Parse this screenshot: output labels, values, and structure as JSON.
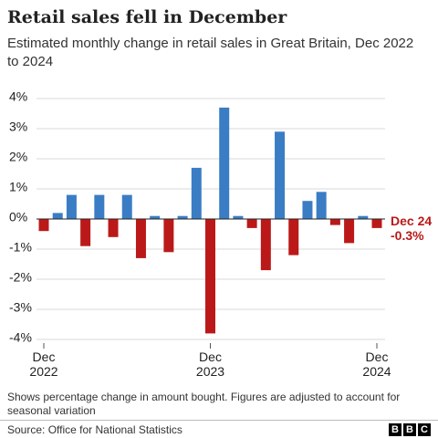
{
  "chart_data": {
    "type": "bar",
    "title": "Retail sales fell in December",
    "subtitle": "Estimated monthly change in retail sales in Great Britain, Dec 2022 to 2024",
    "categories": [
      "Dec\n2022",
      null,
      null,
      null,
      null,
      null,
      null,
      null,
      null,
      null,
      null,
      null,
      "Dec\n2023",
      null,
      null,
      null,
      null,
      null,
      null,
      null,
      null,
      null,
      null,
      null,
      "Dec\n2024"
    ],
    "values": [
      -0.4,
      0.2,
      0.8,
      -0.9,
      0.8,
      -0.6,
      0.8,
      -1.3,
      0.1,
      -1.1,
      0.1,
      1.7,
      -3.8,
      3.7,
      0.1,
      -0.3,
      -1.7,
      2.9,
      -1.2,
      0.6,
      0.9,
      -0.2,
      -0.8,
      0.1,
      -0.3
    ],
    "value_labels": [
      null,
      null,
      null,
      null,
      null,
      null,
      null,
      null,
      null,
      null,
      null,
      null,
      null,
      null,
      null,
      null,
      null,
      null,
      null,
      null,
      null,
      null,
      null,
      null,
      "-0.3%"
    ],
    "annotation": "Dec 24",
    "positive_color": "#3a7dc4",
    "negative_color": "#bb1919",
    "ylim": [
      -4,
      4
    ],
    "yticks": [
      {
        "value": 4,
        "label": "4%"
      },
      {
        "value": 3,
        "label": "3%"
      },
      {
        "value": 2,
        "label": "2%"
      },
      {
        "value": 1,
        "label": "1%"
      },
      {
        "value": 0,
        "label": "0%"
      },
      {
        "value": -1,
        "label": "-1%"
      },
      {
        "value": -2,
        "label": "-2%"
      },
      {
        "value": -3,
        "label": "-3%"
      },
      {
        "value": -4,
        "label": "-4%"
      }
    ],
    "grid": true,
    "note": "Shows percentage change in amount bought. Figures are adjusted to account for seasonal variation",
    "source": "Source: Office for National Statistics",
    "logo": [
      "B",
      "B",
      "C"
    ]
  }
}
